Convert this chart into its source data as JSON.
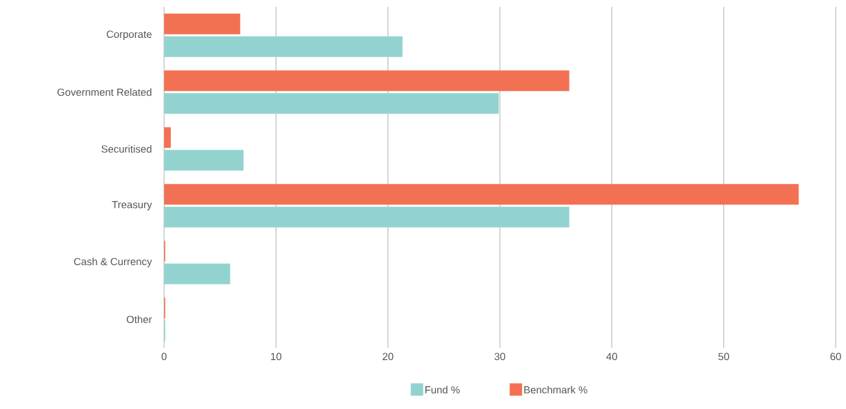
{
  "chart_data": {
    "type": "bar",
    "orientation": "horizontal",
    "categories": [
      "Corporate",
      "Government Related",
      "Securitised",
      "Treasury",
      "Cash & Currency",
      "Other"
    ],
    "series": [
      {
        "name": "Fund %",
        "color": "#92d3cf",
        "values": [
          21.3,
          29.9,
          7.1,
          36.2,
          5.9,
          0.1
        ]
      },
      {
        "name": "Benchmark %",
        "color": "#f37153",
        "values": [
          6.8,
          36.2,
          0.6,
          56.7,
          0.1,
          0.1
        ]
      }
    ],
    "xlim": [
      0,
      60
    ],
    "xticks": [
      0,
      10,
      20,
      30,
      40,
      50,
      60
    ],
    "grid": "x",
    "legend": "bottom"
  }
}
